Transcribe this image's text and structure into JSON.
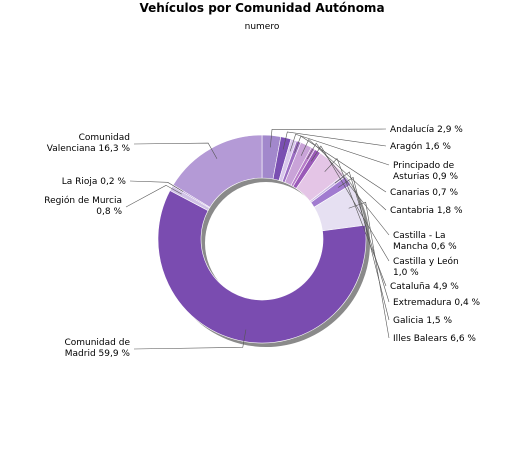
{
  "chart_data": {
    "type": "pie",
    "donut": true,
    "title": "Vehículos por Comunidad Autónoma",
    "subtitle": "numero",
    "legend": "none",
    "slices": [
      {
        "label": "Andalucía",
        "value": 2.9,
        "display": "Andalucía 2,9 %",
        "color": "#a288cc"
      },
      {
        "label": "Aragón",
        "value": 1.6,
        "display": "Aragón 1,6 %",
        "color": "#7a4fb2"
      },
      {
        "label": "Principado de Asturias",
        "value": 0.9,
        "display": "Principado de Asturias 0,9 %",
        "color": "#d9c8ec"
      },
      {
        "label": "Canarias",
        "value": 0.7,
        "display": "Canarias 0,7 %",
        "color": "#9b6dc2"
      },
      {
        "label": "Cantabria",
        "value": 1.8,
        "display": "Cantabria 1,8 %",
        "color": "#c9a3d8"
      },
      {
        "label": "Castilla - La Mancha",
        "value": 0.6,
        "display": "Castilla - La Mancha 0,6 %",
        "color": "#b77cc9"
      },
      {
        "label": "Castilla y León",
        "value": 1.0,
        "display": "Castilla y León 1,0 %",
        "color": "#9a5ab8"
      },
      {
        "label": "Cataluña",
        "value": 4.9,
        "display": "Cataluña 4,9 %",
        "color": "#e4c5e6"
      },
      {
        "label": "Extremadura",
        "value": 0.4,
        "display": "Extremadura 0,4 %",
        "color": "#cbb8e2"
      },
      {
        "label": "Galicia",
        "value": 1.5,
        "display": "Galicia 1,5 %",
        "color": "#a17bd0"
      },
      {
        "label": "Illes Balears",
        "value": 6.6,
        "display": "Illes Balears 6,6 %",
        "color": "#e6e0f2"
      },
      {
        "label": "Comunidad de Madrid",
        "value": 59.9,
        "display": "Comunidad de Madrid 59,9 %",
        "color": "#7a4cb0"
      },
      {
        "label": "Región de Murcia",
        "value": 0.8,
        "display": "Región de Murcia 0,8 %",
        "color": "#d0c2e6"
      },
      {
        "label": "La Rioja",
        "value": 0.2,
        "display": "La Rioja 0,2 %",
        "color": "#8f64c0"
      },
      {
        "label": "Comunidad Valenciana",
        "value": 16.3,
        "display": "Comunidad Valenciana 16,3 %",
        "color": "#b49ad6"
      }
    ]
  }
}
